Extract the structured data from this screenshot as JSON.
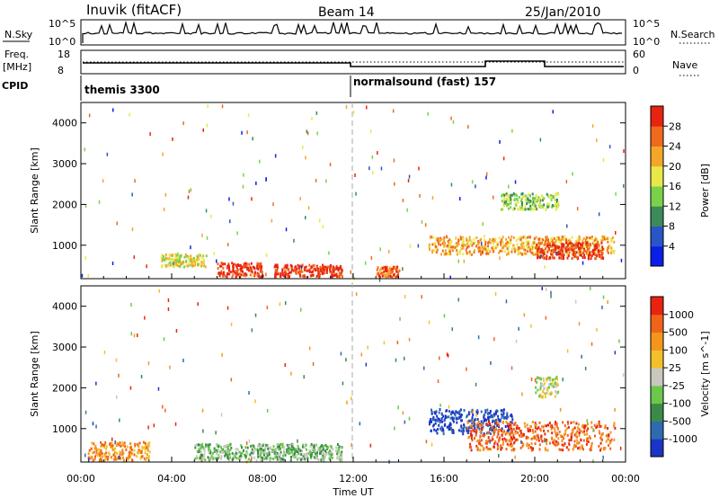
{
  "header": {
    "station": "Inuvik (fitACF)",
    "beam": "Beam 14",
    "date": "25/Jan/2010"
  },
  "summary_panels": {
    "nsky": {
      "label": "N.Sky",
      "tick_top": "10^5",
      "tick_bottom": "10^0",
      "right_label": "N.Search",
      "right_tick_top": "10^5",
      "right_tick_bottom": "10^0"
    },
    "freq": {
      "label_top": "Freq.",
      "label_bottom": "[MHz]",
      "tick_top": "18",
      "tick_bottom": "8",
      "right_label": "Nave",
      "right_tick_top": "60",
      "right_tick_bottom": "0"
    },
    "cpid": {
      "label": "CPID",
      "programs": [
        {
          "name": "themis 3300",
          "start_hour": 0
        },
        {
          "name": "normalsound (fast) 157",
          "start_hour": 12
        }
      ]
    }
  },
  "chart_data": [
    {
      "type": "heatmap",
      "name": "power",
      "ylabel": "Slant Range [km]",
      "xlim": [
        0,
        24
      ],
      "ylim": [
        180,
        4500
      ],
      "yticks": [
        1000,
        2000,
        3000,
        4000
      ],
      "colorbar": {
        "label": "Power [dB]",
        "ticks": [
          "4",
          "8",
          "12",
          "16",
          "20",
          "24",
          "28"
        ],
        "colors": [
          "#0a1fe6",
          "#2a55c8",
          "#3c8a5a",
          "#7bd24a",
          "#e8e84a",
          "#f4a62a",
          "#f06a1e",
          "#e82410"
        ]
      },
      "blobs": [
        {
          "t0": 6.0,
          "t1": 8.0,
          "r0": 250,
          "r1": 600,
          "level": 7
        },
        {
          "t0": 8.5,
          "t1": 11.5,
          "r0": 250,
          "r1": 550,
          "level": 7
        },
        {
          "t0": 15.3,
          "t1": 23.5,
          "r0": 800,
          "r1": 1250,
          "level": 5
        },
        {
          "t0": 20.0,
          "t1": 23.0,
          "r0": 700,
          "r1": 1100,
          "level": 7
        },
        {
          "t0": 13.0,
          "t1": 14.0,
          "r0": 250,
          "r1": 500,
          "level": 6
        },
        {
          "t0": 3.5,
          "t1": 5.5,
          "r0": 500,
          "r1": 800,
          "level": 4
        },
        {
          "t0": 18.5,
          "t1": 21.0,
          "r0": 1900,
          "r1": 2300,
          "level": 3
        }
      ]
    },
    {
      "type": "heatmap",
      "name": "velocity",
      "ylabel": "Slant Range [km]",
      "xlabel": "Time UT",
      "xlim": [
        0,
        24
      ],
      "ylim": [
        180,
        4500
      ],
      "yticks": [
        1000,
        2000,
        3000,
        4000
      ],
      "xticks": [
        "00:00",
        "04:00",
        "08:00",
        "12:00",
        "16:00",
        "20:00",
        "00:00"
      ],
      "colorbar": {
        "label": "Velocity [m s^-1]",
        "ticks": [
          "1000",
          "500",
          "100",
          "25",
          "-25",
          "-100",
          "-500",
          "-1000"
        ],
        "colors": [
          "#1a34c8",
          "#2e6ab0",
          "#3c8a4a",
          "#6ac84a",
          "#c8c8c0",
          "#f4c02a",
          "#f4961e",
          "#f0641a",
          "#e82410"
        ]
      },
      "blobs": [
        {
          "t0": 15.3,
          "t1": 19.0,
          "r0": 900,
          "r1": 1500,
          "level": 0
        },
        {
          "t0": 17.0,
          "t1": 23.5,
          "r0": 500,
          "r1": 1200,
          "level": 7
        },
        {
          "t0": 5.0,
          "t1": 11.5,
          "r0": 250,
          "r1": 650,
          "level": 3
        },
        {
          "t0": 20.0,
          "t1": 21.0,
          "r0": 1800,
          "r1": 2300,
          "level": 4
        },
        {
          "t0": 0.3,
          "t1": 3.0,
          "r0": 250,
          "r1": 700,
          "level": 6
        }
      ]
    }
  ]
}
